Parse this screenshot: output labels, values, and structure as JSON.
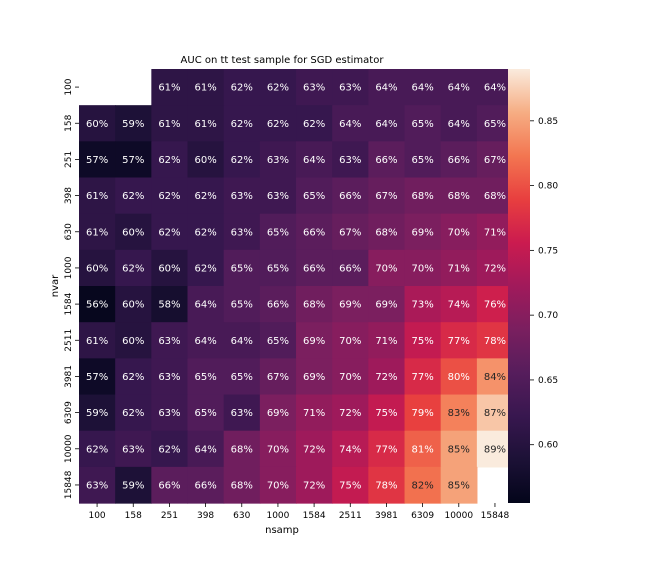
{
  "chart_data": {
    "type": "heatmap",
    "title": "AUC on tt test sample for SGD estimator",
    "xlabel": "nsamp",
    "ylabel": "nvar",
    "x_categories": [
      "100",
      "158",
      "251",
      "398",
      "630",
      "1000",
      "1584",
      "2511",
      "3981",
      "6309",
      "10000",
      "15848"
    ],
    "y_categories": [
      "100",
      "158",
      "251",
      "398",
      "630",
      "1000",
      "1584",
      "2511",
      "3981",
      "6309",
      "10000",
      "15848"
    ],
    "values": [
      [
        null,
        null,
        0.61,
        0.61,
        0.62,
        0.62,
        0.63,
        0.63,
        0.64,
        0.64,
        0.64,
        0.64
      ],
      [
        0.6,
        0.59,
        0.61,
        0.61,
        0.62,
        0.62,
        0.62,
        0.64,
        0.64,
        0.65,
        0.64,
        0.65
      ],
      [
        0.57,
        0.57,
        0.62,
        0.6,
        0.62,
        0.63,
        0.64,
        0.63,
        0.66,
        0.65,
        0.66,
        0.67
      ],
      [
        0.61,
        0.62,
        0.62,
        0.62,
        0.63,
        0.63,
        0.65,
        0.66,
        0.67,
        0.68,
        0.68,
        0.68
      ],
      [
        0.61,
        0.6,
        0.62,
        0.62,
        0.63,
        0.65,
        0.66,
        0.67,
        0.68,
        0.69,
        0.7,
        0.71
      ],
      [
        0.6,
        0.62,
        0.6,
        0.62,
        0.65,
        0.65,
        0.66,
        0.66,
        0.7,
        0.7,
        0.71,
        0.72
      ],
      [
        0.56,
        0.6,
        0.58,
        0.64,
        0.65,
        0.66,
        0.68,
        0.69,
        0.69,
        0.73,
        0.74,
        0.76
      ],
      [
        0.61,
        0.6,
        0.63,
        0.64,
        0.64,
        0.65,
        0.69,
        0.7,
        0.71,
        0.75,
        0.77,
        0.78
      ],
      [
        0.57,
        0.62,
        0.63,
        0.65,
        0.65,
        0.67,
        0.69,
        0.7,
        0.72,
        0.77,
        0.8,
        0.84
      ],
      [
        0.59,
        0.62,
        0.63,
        0.65,
        0.63,
        0.69,
        0.71,
        0.72,
        0.75,
        0.79,
        0.83,
        0.87
      ],
      [
        0.62,
        0.63,
        0.62,
        0.64,
        0.68,
        0.7,
        0.72,
        0.74,
        0.77,
        0.81,
        0.85,
        0.89
      ],
      [
        0.63,
        0.59,
        0.66,
        0.66,
        0.68,
        0.7,
        0.72,
        0.75,
        0.78,
        0.82,
        0.85,
        null
      ]
    ],
    "value_format": "percent",
    "colormap": "rocket",
    "colorbar": {
      "range": [
        0.555,
        0.89
      ],
      "ticks": [
        0.6,
        0.65,
        0.7,
        0.75,
        0.8,
        0.85
      ],
      "tick_labels": [
        "0.60",
        "0.65",
        "0.70",
        "0.75",
        "0.80",
        "0.85"
      ]
    },
    "colormap_stops": [
      [
        0.0,
        "#03051a"
      ],
      [
        0.1,
        "#1c1136"
      ],
      [
        0.2,
        "#38174f"
      ],
      [
        0.3,
        "#561d5c"
      ],
      [
        0.4,
        "#7a1f5f"
      ],
      [
        0.5,
        "#a11a5b"
      ],
      [
        0.6,
        "#cb1b4f"
      ],
      [
        0.7,
        "#e83f3f"
      ],
      [
        0.8,
        "#f37651"
      ],
      [
        0.9,
        "#f6ad83"
      ],
      [
        1.0,
        "#faebdd"
      ]
    ]
  }
}
